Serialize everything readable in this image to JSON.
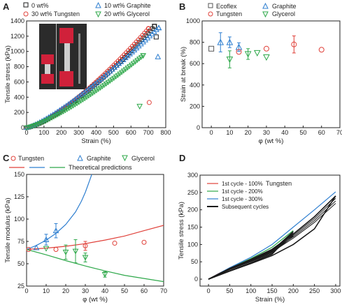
{
  "colors": {
    "black": "#1a1a1a",
    "gray": "#555555",
    "red": "#e0413a",
    "blue": "#2f7fd0",
    "green": "#2ea84a",
    "dark_red": "#c0392b"
  },
  "chart_data": [
    {
      "panel": "A",
      "type": "scatter",
      "xlabel": "Strain (%)",
      "ylabel": "Tensile stress (kPa)",
      "xlim": [
        0,
        800
      ],
      "ylim": [
        0,
        1400
      ],
      "xticks": [
        "0",
        "100",
        "200",
        "300",
        "400",
        "500",
        "600",
        "700",
        "800"
      ],
      "yticks": [
        "0",
        "200",
        "400",
        "600",
        "800",
        "1000",
        "1200",
        "1400"
      ],
      "grid": false,
      "legend": [
        "0 wt%",
        "30 wt% Tungsten",
        "10 wt% Graphite",
        "20 wt% Glycerol"
      ],
      "series": [
        {
          "name": "0 wt%",
          "color": "black",
          "marker": "square",
          "curve_exponent": 1.37,
          "break_points": [
            [
              735,
              1330
            ],
            [
              745,
              1190
            ]
          ]
        },
        {
          "name": "30 wt% Tungsten",
          "color": "red",
          "marker": "circle",
          "curve_exponent": 1.37,
          "break_points": [
            [
              700,
              1300
            ],
            [
              705,
              330
            ]
          ]
        },
        {
          "name": "10 wt% Graphite",
          "color": "blue",
          "marker": "triangle-up",
          "curve_exponent": 1.25,
          "break_points": [
            [
              760,
              1310
            ],
            [
              755,
              930
            ]
          ]
        },
        {
          "name": "20 wt% Glycerol",
          "color": "green",
          "marker": "triangle-down",
          "curve_exponent": 1.3,
          "break_points": [
            [
              670,
              945
            ],
            [
              650,
              280
            ]
          ]
        }
      ]
    },
    {
      "panel": "B",
      "type": "scatter",
      "xlabel": "φ (wt %)",
      "ylabel": "Strain at break (%)",
      "xlim": [
        -5,
        70
      ],
      "ylim": [
        0,
        1000
      ],
      "xticks": [
        "0",
        "10",
        "20",
        "30",
        "40",
        "50",
        "60",
        "70"
      ],
      "yticks": [
        "0",
        "200",
        "400",
        "600",
        "800",
        "1000"
      ],
      "grid": false,
      "legend": [
        "Ecoflex",
        "Graphite",
        "Tungsten",
        "Glycerol"
      ],
      "series": [
        {
          "name": "Ecoflex",
          "color": "gray",
          "marker": "square",
          "points": [
            [
              0,
              740,
              0
            ]
          ]
        },
        {
          "name": "Graphite",
          "color": "blue",
          "marker": "triangle-up",
          "points": [
            [
              5,
              800,
              90
            ],
            [
              10,
              800,
              50
            ],
            [
              15,
              755,
              40
            ]
          ]
        },
        {
          "name": "Tungsten",
          "color": "red",
          "marker": "circle",
          "points": [
            [
              15,
              710,
              0
            ],
            [
              30,
              740,
              0
            ],
            [
              45,
              780,
              80
            ],
            [
              60,
              730,
              0
            ]
          ]
        },
        {
          "name": "Glycerol",
          "color": "green",
          "marker": "triangle-down",
          "points": [
            [
              10,
              640,
              80
            ],
            [
              20,
              690,
              50
            ],
            [
              25,
              700,
              0
            ],
            [
              30,
              660,
              0
            ]
          ]
        }
      ]
    },
    {
      "panel": "C",
      "type": "scatter",
      "xlabel": "φ (wt %)",
      "ylabel": "Tensile modulus (kPa)",
      "xlim": [
        0,
        70
      ],
      "ylim": [
        25,
        150
      ],
      "xticks": [
        "0",
        "10",
        "20",
        "30",
        "40",
        "50",
        "60",
        "70"
      ],
      "yticks": [
        "25",
        "50",
        "75",
        "100",
        "125",
        "150"
      ],
      "grid": false,
      "legend": [
        "Tungsten",
        "Graphite",
        "Glycerol",
        "Theoretical predictions"
      ],
      "series": [
        {
          "name": "Tungsten",
          "color": "red",
          "marker": "circle",
          "points": [
            [
              1,
              66,
              0
            ],
            [
              15,
              66,
              0
            ],
            [
              30,
              70,
              5
            ],
            [
              45,
              73,
              0
            ],
            [
              60,
              74,
              0
            ]
          ]
        },
        {
          "name": "Graphite",
          "color": "blue",
          "marker": "triangle-up",
          "points": [
            [
              5,
              68,
              0
            ],
            [
              10,
              77,
              6
            ],
            [
              15,
              87,
              8
            ]
          ]
        },
        {
          "name": "Glycerol",
          "color": "green",
          "marker": "triangle-down",
          "points": [
            [
              10,
              67,
              0
            ],
            [
              20,
              63,
              8
            ],
            [
              25,
              64,
              13
            ],
            [
              30,
              57,
              5
            ],
            [
              40,
              38,
              3
            ]
          ]
        }
      ],
      "theory": [
        {
          "name": "Tungsten prediction",
          "color": "red",
          "points": [
            [
              0,
              66
            ],
            [
              10,
              67.5
            ],
            [
              20,
              69.5
            ],
            [
              30,
              72.5
            ],
            [
              40,
              76.5
            ],
            [
              50,
              81
            ],
            [
              60,
              87
            ],
            [
              70,
              93
            ]
          ]
        },
        {
          "name": "Graphite prediction",
          "color": "blue",
          "points": [
            [
              0,
              66
            ],
            [
              5,
              70.5
            ],
            [
              10,
              76.5
            ],
            [
              15,
              84
            ],
            [
              20,
              94
            ],
            [
              25,
              108
            ],
            [
              28,
              120
            ],
            [
              30,
              130
            ],
            [
              32,
              142
            ],
            [
              33.3,
              150
            ]
          ]
        },
        {
          "name": "Glycerol prediction",
          "color": "green",
          "points": [
            [
              0,
              66
            ],
            [
              10,
              60
            ],
            [
              20,
              53.5
            ],
            [
              30,
              47.5
            ],
            [
              40,
              42
            ],
            [
              50,
              37
            ],
            [
              60,
              33.5
            ],
            [
              70,
              30
            ]
          ]
        }
      ]
    },
    {
      "panel": "D",
      "type": "line",
      "title": "Tungsten",
      "xlabel": "Strain (%)",
      "ylabel": "Tensile stress (kPa)",
      "xlim": [
        -20,
        310
      ],
      "ylim": [
        -20,
        300
      ],
      "xticks": [
        "0",
        "50",
        "100",
        "150",
        "200",
        "250",
        "300"
      ],
      "yticks": [
        "0",
        "50",
        "100",
        "150",
        "200",
        "250",
        "300"
      ],
      "grid": false,
      "legend": [
        "1st cycle - 100%",
        "1st cycle - 200%",
        "1st cycle - 300%",
        "Subsequent cycles"
      ],
      "series": [
        {
          "name": "1st cycle - 100%",
          "color": "red",
          "points": [
            [
              0,
              0
            ],
            [
              25,
              17
            ],
            [
              50,
              31
            ],
            [
              75,
              44
            ],
            [
              100,
              57
            ]
          ]
        },
        {
          "name": "1st cycle - 200%",
          "color": "green",
          "points": [
            [
              0,
              0
            ],
            [
              50,
              32
            ],
            [
              100,
              59
            ],
            [
              150,
              92
            ],
            [
              200,
              140
            ]
          ]
        },
        {
          "name": "1st cycle - 300%",
          "color": "blue",
          "points": [
            [
              0,
              0
            ],
            [
              50,
              33
            ],
            [
              100,
              63
            ],
            [
              150,
              100
            ],
            [
              200,
              150
            ],
            [
              250,
              200
            ],
            [
              300,
              252
            ]
          ]
        },
        {
          "name": "Subsequent cycles",
          "color": "black",
          "loops": [
            {
              "load": [
                [
                  0,
                  0
                ],
                [
                  50,
                  30
                ],
                [
                  100,
                  55
                ],
                [
                  150,
                  82
                ],
                [
                  200,
                  137
                ]
              ],
              "unload": [
                [
                  200,
                  137
                ],
                [
                  150,
                  72
                ],
                [
                  100,
                  47
                ],
                [
                  50,
                  24
                ],
                [
                  0,
                  0
                ]
              ]
            },
            {
              "load": [
                [
                  0,
                  0
                ],
                [
                  50,
                  31
                ],
                [
                  100,
                  57
                ],
                [
                  150,
                  86
                ],
                [
                  200,
                  130
                ],
                [
                  250,
                  180
                ],
                [
                  300,
                  240
                ]
              ],
              "unload": [
                [
                  300,
                  240
                ],
                [
                  250,
                  145
                ],
                [
                  200,
                  100
                ],
                [
                  150,
                  68
                ],
                [
                  100,
                  45
                ],
                [
                  50,
                  23
                ],
                [
                  0,
                  0
                ]
              ]
            }
          ]
        }
      ]
    }
  ],
  "panel_labels": {
    "a": "A",
    "b": "B",
    "c": "C",
    "d": "D"
  },
  "legend_text": {
    "a": [
      "0 wt%",
      "30 wt% Tungsten",
      "10 wt% Graphite",
      "20 wt% Glycerol"
    ],
    "b": [
      "Ecoflex",
      "Graphite",
      "Tungsten",
      "Glycerol"
    ],
    "c": [
      "Tungsten",
      "Graphite",
      "Glycerol",
      "Theoretical predictions"
    ],
    "d_title": "Tungsten",
    "d": [
      "1st cycle - 100%",
      "1st cycle - 200%",
      "1st cycle - 300%",
      "Subsequent cycles"
    ]
  },
  "photo": {
    "description_icon": "sample-photo-icon"
  }
}
